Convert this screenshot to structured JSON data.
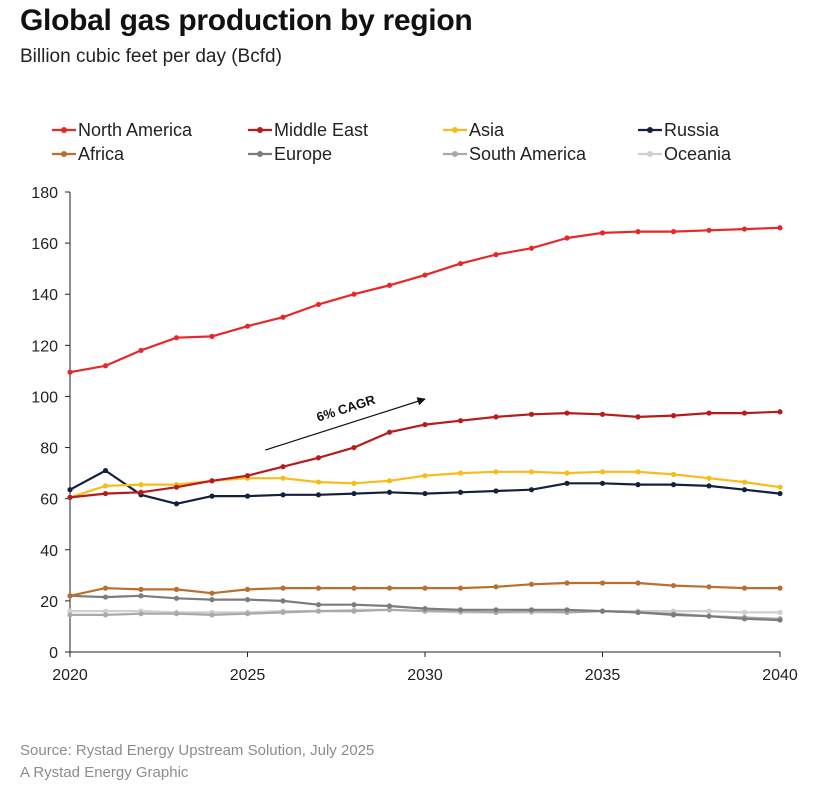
{
  "header": {
    "title": "Global gas production by region",
    "subtitle": "Billion cubic feet per day (Bcfd)"
  },
  "footer": {
    "source": "Source: Rystad Energy Upstream Solution, July 2025",
    "credit": "A Rystad Energy Graphic"
  },
  "chart_data": {
    "type": "line",
    "title": "Global gas production by region",
    "subtitle": "Billion cubic feet per day (Bcfd)",
    "xlabel": "",
    "ylabel": "",
    "xlim": [
      2020,
      2040
    ],
    "ylim": [
      0,
      180
    ],
    "x_ticks": [
      2020,
      2025,
      2030,
      2035,
      2040
    ],
    "y_ticks": [
      0,
      20,
      40,
      60,
      80,
      100,
      120,
      140,
      160,
      180
    ],
    "grid": false,
    "legend_placement": "top",
    "x": [
      2020,
      2021,
      2022,
      2023,
      2024,
      2025,
      2026,
      2027,
      2028,
      2029,
      2030,
      2031,
      2032,
      2033,
      2034,
      2035,
      2036,
      2037,
      2038,
      2039,
      2040
    ],
    "series": [
      {
        "name": "North America",
        "color": "#e8272b",
        "values": [
          109.5,
          112,
          118,
          123,
          123.5,
          127.5,
          131,
          136,
          140,
          143.5,
          147.5,
          152,
          155.5,
          158,
          162,
          164,
          164.5,
          164.5,
          165,
          165.5,
          166
        ]
      },
      {
        "name": "Middle East",
        "color": "#b71c1c",
        "values": [
          60.5,
          62,
          62.5,
          64.5,
          67,
          69,
          72.5,
          76,
          80,
          86,
          89,
          90.5,
          92,
          93,
          93.5,
          93,
          92,
          92.5,
          93.5,
          93.5,
          94
        ]
      },
      {
        "name": "Asia",
        "color": "#f6bd18",
        "values": [
          60.5,
          65,
          65.5,
          65.5,
          67,
          68,
          68,
          66.5,
          66,
          67,
          69,
          70,
          70.5,
          70.5,
          70,
          70.5,
          70.5,
          69.5,
          68,
          66.5,
          64.5
        ]
      },
      {
        "name": "Russia",
        "color": "#14213d",
        "values": [
          63.5,
          71,
          61.5,
          58,
          61,
          61,
          61.5,
          61.5,
          62,
          62.5,
          62,
          62.5,
          63,
          63.5,
          66,
          66,
          65.5,
          65.5,
          65,
          63.5,
          62
        ]
      },
      {
        "name": "Africa",
        "color": "#b8702e",
        "values": [
          22,
          25,
          24.5,
          24.5,
          23,
          24.5,
          25,
          25,
          25,
          25,
          25,
          25,
          25.5,
          26.5,
          27,
          27,
          27,
          26,
          25.5,
          25,
          25
        ]
      },
      {
        "name": "Europe",
        "color": "#7c7c7c",
        "values": [
          22,
          21.5,
          22,
          21,
          20.5,
          20.5,
          20,
          18.5,
          18.5,
          18,
          17,
          16.5,
          16.5,
          16.5,
          16.5,
          16,
          15.5,
          14.5,
          14,
          13,
          12.5
        ]
      },
      {
        "name": "South America",
        "color": "#a9a9a9",
        "values": [
          14.5,
          14.5,
          15,
          15,
          14.5,
          15,
          15.5,
          16,
          16,
          16.5,
          16,
          16,
          15.5,
          16,
          15.5,
          16,
          15.5,
          15,
          14,
          13.5,
          13
        ]
      },
      {
        "name": "Oceania",
        "color": "#cfcfcf",
        "values": [
          16,
          16,
          16,
          15.5,
          15.5,
          15.5,
          16,
          16,
          16.5,
          16.5,
          16,
          15.5,
          15.5,
          15.5,
          15.5,
          16,
          16,
          16,
          16,
          15.5,
          15.5
        ]
      }
    ],
    "annotations": [
      {
        "text": "6% CAGR",
        "type": "arrow",
        "from": [
          2025.5,
          79
        ],
        "to": [
          2030,
          99
        ]
      }
    ]
  }
}
